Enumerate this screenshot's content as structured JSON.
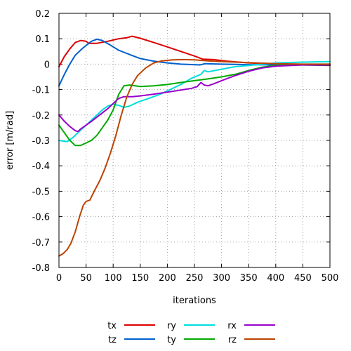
{
  "chart_data": {
    "type": "line",
    "title": "",
    "xlabel": "iterations",
    "ylabel": "error [m/rad]",
    "xlim": [
      0,
      500
    ],
    "ylim": [
      -0.8,
      0.2
    ],
    "xticks": [
      "0",
      "50",
      "100",
      "150",
      "200",
      "250",
      "300",
      "350",
      "400",
      "450",
      "500"
    ],
    "yticks": [
      "-0.8",
      "-0.7",
      "-0.6",
      "-0.5",
      "-0.4",
      "-0.3",
      "-0.2",
      "-0.1",
      "0",
      "0.1",
      "0.2"
    ],
    "grid": true,
    "legend_position": "bottom",
    "series": [
      {
        "name": "tx",
        "color": "#dd0000",
        "points": [
          [
            0,
            -0.01
          ],
          [
            10,
            0.03
          ],
          [
            20,
            0.06
          ],
          [
            30,
            0.085
          ],
          [
            40,
            0.093
          ],
          [
            50,
            0.09
          ],
          [
            55,
            0.082
          ],
          [
            70,
            0.082
          ],
          [
            90,
            0.09
          ],
          [
            110,
            0.1
          ],
          [
            125,
            0.104
          ],
          [
            135,
            0.11
          ],
          [
            150,
            0.102
          ],
          [
            175,
            0.085
          ],
          [
            200,
            0.068
          ],
          [
            225,
            0.05
          ],
          [
            250,
            0.032
          ],
          [
            265,
            0.02
          ],
          [
            285,
            0.018
          ],
          [
            310,
            0.012
          ],
          [
            350,
            0.005
          ],
          [
            400,
            0.0
          ],
          [
            450,
            -0.003
          ],
          [
            500,
            -0.005
          ]
        ]
      },
      {
        "name": "tz",
        "color": "#0060cc",
        "points": [
          [
            0,
            -0.085
          ],
          [
            10,
            -0.04
          ],
          [
            20,
            0.0
          ],
          [
            30,
            0.035
          ],
          [
            45,
            0.065
          ],
          [
            60,
            0.09
          ],
          [
            70,
            0.098
          ],
          [
            80,
            0.093
          ],
          [
            95,
            0.075
          ],
          [
            110,
            0.055
          ],
          [
            130,
            0.038
          ],
          [
            150,
            0.022
          ],
          [
            175,
            0.012
          ],
          [
            200,
            0.005
          ],
          [
            225,
            0.0
          ],
          [
            260,
            -0.003
          ],
          [
            270,
            0.002
          ],
          [
            300,
            0.0
          ],
          [
            350,
            -0.002
          ],
          [
            400,
            -0.003
          ],
          [
            500,
            -0.004
          ]
        ]
      },
      {
        "name": "ry",
        "color": "#00dddd",
        "points": [
          [
            0,
            -0.3
          ],
          [
            15,
            -0.305
          ],
          [
            25,
            -0.29
          ],
          [
            35,
            -0.27
          ],
          [
            50,
            -0.24
          ],
          [
            65,
            -0.21
          ],
          [
            80,
            -0.18
          ],
          [
            90,
            -0.165
          ],
          [
            100,
            -0.158
          ],
          [
            110,
            -0.162
          ],
          [
            120,
            -0.17
          ],
          [
            130,
            -0.165
          ],
          [
            145,
            -0.15
          ],
          [
            165,
            -0.135
          ],
          [
            185,
            -0.12
          ],
          [
            205,
            -0.1
          ],
          [
            225,
            -0.08
          ],
          [
            245,
            -0.055
          ],
          [
            262,
            -0.04
          ],
          [
            268,
            -0.025
          ],
          [
            275,
            -0.03
          ],
          [
            300,
            -0.02
          ],
          [
            325,
            -0.01
          ],
          [
            350,
            -0.005
          ],
          [
            375,
            0.0
          ],
          [
            400,
            0.005
          ],
          [
            450,
            0.008
          ],
          [
            500,
            0.01
          ]
        ]
      },
      {
        "name": "ty",
        "color": "#00aa00",
        "points": [
          [
            0,
            -0.24
          ],
          [
            10,
            -0.27
          ],
          [
            20,
            -0.3
          ],
          [
            30,
            -0.32
          ],
          [
            40,
            -0.32
          ],
          [
            50,
            -0.31
          ],
          [
            60,
            -0.3
          ],
          [
            70,
            -0.28
          ],
          [
            80,
            -0.25
          ],
          [
            90,
            -0.22
          ],
          [
            100,
            -0.18
          ],
          [
            110,
            -0.12
          ],
          [
            120,
            -0.085
          ],
          [
            130,
            -0.082
          ],
          [
            150,
            -0.088
          ],
          [
            175,
            -0.085
          ],
          [
            200,
            -0.08
          ],
          [
            225,
            -0.072
          ],
          [
            250,
            -0.065
          ],
          [
            275,
            -0.058
          ],
          [
            300,
            -0.05
          ],
          [
            325,
            -0.04
          ],
          [
            350,
            -0.025
          ],
          [
            375,
            -0.012
          ],
          [
            400,
            -0.005
          ],
          [
            450,
            -0.002
          ],
          [
            500,
            0.0
          ]
        ]
      },
      {
        "name": "rx",
        "color": "#9900cc",
        "points": [
          [
            0,
            -0.2
          ],
          [
            10,
            -0.225
          ],
          [
            20,
            -0.245
          ],
          [
            30,
            -0.262
          ],
          [
            35,
            -0.265
          ],
          [
            40,
            -0.255
          ],
          [
            50,
            -0.24
          ],
          [
            60,
            -0.225
          ],
          [
            75,
            -0.2
          ],
          [
            90,
            -0.175
          ],
          [
            100,
            -0.155
          ],
          [
            110,
            -0.135
          ],
          [
            120,
            -0.128
          ],
          [
            135,
            -0.128
          ],
          [
            150,
            -0.125
          ],
          [
            175,
            -0.118
          ],
          [
            200,
            -0.11
          ],
          [
            225,
            -0.102
          ],
          [
            245,
            -0.095
          ],
          [
            255,
            -0.088
          ],
          [
            262,
            -0.072
          ],
          [
            268,
            -0.082
          ],
          [
            275,
            -0.085
          ],
          [
            285,
            -0.078
          ],
          [
            300,
            -0.065
          ],
          [
            325,
            -0.045
          ],
          [
            350,
            -0.028
          ],
          [
            375,
            -0.015
          ],
          [
            400,
            -0.008
          ],
          [
            450,
            -0.003
          ],
          [
            500,
            -0.002
          ]
        ]
      },
      {
        "name": "rz",
        "color": "#bb4400",
        "points": [
          [
            0,
            -0.755
          ],
          [
            8,
            -0.745
          ],
          [
            15,
            -0.73
          ],
          [
            22,
            -0.705
          ],
          [
            30,
            -0.66
          ],
          [
            38,
            -0.6
          ],
          [
            45,
            -0.555
          ],
          [
            50,
            -0.54
          ],
          [
            57,
            -0.535
          ],
          [
            65,
            -0.5
          ],
          [
            75,
            -0.46
          ],
          [
            85,
            -0.41
          ],
          [
            95,
            -0.35
          ],
          [
            105,
            -0.28
          ],
          [
            115,
            -0.2
          ],
          [
            125,
            -0.13
          ],
          [
            135,
            -0.08
          ],
          [
            145,
            -0.045
          ],
          [
            160,
            -0.015
          ],
          [
            175,
            0.005
          ],
          [
            190,
            0.013
          ],
          [
            210,
            0.017
          ],
          [
            230,
            0.018
          ],
          [
            250,
            0.017
          ],
          [
            275,
            0.013
          ],
          [
            300,
            0.01
          ],
          [
            325,
            0.008
          ],
          [
            350,
            0.006
          ],
          [
            400,
            0.002
          ],
          [
            450,
            0.0
          ],
          [
            500,
            0.0
          ]
        ]
      }
    ]
  }
}
